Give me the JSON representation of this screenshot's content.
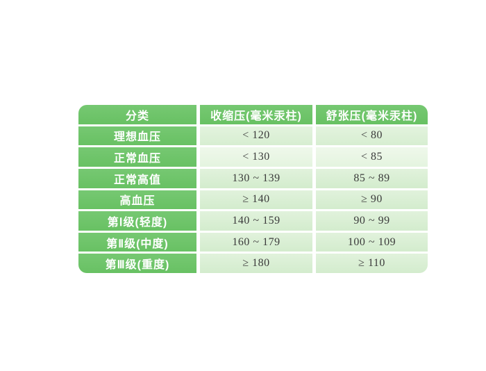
{
  "chart_data": {
    "type": "table",
    "columns": [
      "分类",
      "收缩压(毫米汞柱)",
      "舒张压(毫米汞柱)"
    ],
    "rows": [
      [
        "理想血压",
        "< 120",
        "< 80"
      ],
      [
        "正常血压",
        "< 130",
        "< 85"
      ],
      [
        "正常高值",
        "130 ~ 139",
        "85 ~ 89"
      ],
      [
        "高血压",
        "≥ 140",
        "≥ 90"
      ],
      [
        "第Ⅰ级(轻度)",
        "140 ~ 159",
        "90 ~ 99"
      ],
      [
        "第Ⅱ级(中度)",
        "160 ~ 179",
        "100 ~ 109"
      ],
      [
        "第Ⅲ级(重度)",
        "≥ 180",
        "≥ 110"
      ]
    ],
    "layout": {
      "grid": "white gaps between cells",
      "corner_radius_px": 12
    }
  },
  "colors": {
    "header_green": "#6ec469",
    "cell_light_green": "#d8eed3",
    "cell_lighter_green": "#e9f6e5",
    "grid_line": "#ffffff",
    "text_dark": "#3b3b3b",
    "text_white": "#ffffff",
    "page_background": "#ffffff"
  }
}
